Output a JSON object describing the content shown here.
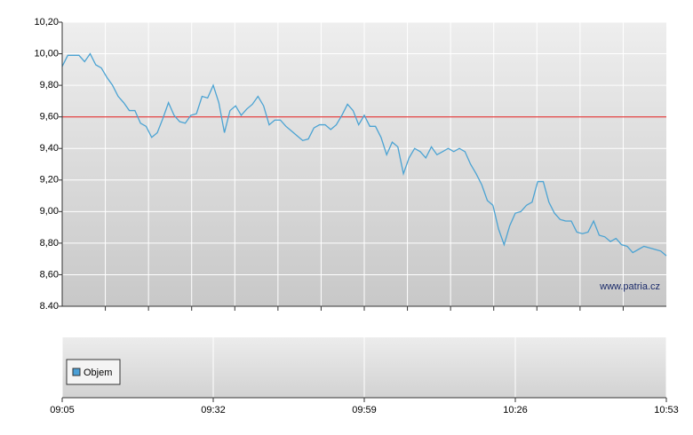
{
  "chart_data": {
    "type": "line",
    "watermark": "www.patria.cz",
    "x": [
      545,
      546,
      547,
      548,
      549,
      550,
      551,
      552,
      553,
      554,
      555,
      556,
      557,
      558,
      559,
      560,
      561,
      562,
      563,
      564,
      565,
      566,
      567,
      568,
      569,
      570,
      571,
      572,
      573,
      574,
      575,
      576,
      577,
      578,
      579,
      580,
      581,
      582,
      583,
      584,
      585,
      586,
      587,
      588,
      589,
      590,
      591,
      592,
      593,
      594,
      595,
      596,
      597,
      598,
      599,
      600,
      601,
      602,
      603,
      604,
      605,
      606,
      607,
      608,
      609,
      610,
      611,
      612,
      613,
      614,
      615,
      616,
      617,
      618,
      619,
      620,
      621,
      622,
      623,
      624,
      625,
      626,
      627,
      628,
      629,
      630,
      631,
      632,
      633,
      634,
      635,
      636,
      637,
      638,
      639,
      640,
      641,
      642,
      643,
      644,
      645,
      646,
      647,
      648,
      649,
      650,
      651,
      652,
      653
    ],
    "series": [
      {
        "color": "#4ba3d3",
        "values": [
          9.92,
          9.99,
          9.99,
          9.99,
          9.95,
          10.0,
          9.93,
          9.91,
          9.85,
          9.8,
          9.73,
          9.69,
          9.64,
          9.64,
          9.56,
          9.54,
          9.47,
          9.5,
          9.59,
          9.69,
          9.61,
          9.57,
          9.56,
          9.61,
          9.62,
          9.73,
          9.72,
          9.8,
          9.69,
          9.5,
          9.64,
          9.67,
          9.61,
          9.65,
          9.68,
          9.73,
          9.67,
          9.55,
          9.58,
          9.58,
          9.54,
          9.51,
          9.48,
          9.45,
          9.46,
          9.53,
          9.55,
          9.55,
          9.52,
          9.55,
          9.61,
          9.68,
          9.64,
          9.55,
          9.61,
          9.54,
          9.54,
          9.47,
          9.36,
          9.44,
          9.41,
          9.24,
          9.34,
          9.4,
          9.38,
          9.34,
          9.41,
          9.36,
          9.38,
          9.4,
          9.38,
          9.4,
          9.38,
          9.3,
          9.24,
          9.17,
          9.07,
          9.04,
          8.89,
          8.79,
          8.91,
          8.99,
          9.0,
          9.04,
          9.06,
          9.19,
          9.19,
          9.06,
          8.99,
          8.95,
          8.94,
          8.94,
          8.87,
          8.86,
          8.87,
          8.94,
          8.85,
          8.84,
          8.81,
          8.83,
          8.79,
          8.78,
          8.74,
          8.76,
          8.78,
          8.77,
          8.76,
          8.75,
          8.72
        ]
      }
    ],
    "reference_line": {
      "value": 9.6,
      "color": "#e03030"
    },
    "volume": {
      "name": "Objem",
      "color": "#4a9fd6"
    },
    "xlim": [
      545,
      653
    ],
    "xticks": [
      {
        "value": 545,
        "label": "09:05"
      },
      {
        "value": 572,
        "label": "09:32"
      },
      {
        "value": 599,
        "label": "09:59"
      },
      {
        "value": 626,
        "label": "10:26"
      },
      {
        "value": 653,
        "label": "10:53"
      }
    ],
    "ylim": [
      8.4,
      10.2
    ],
    "yticks": [
      {
        "value": 8.4,
        "label": "8.40"
      },
      {
        "value": 8.6,
        "label": "8,60"
      },
      {
        "value": 8.8,
        "label": "8,80"
      },
      {
        "value": 9.0,
        "label": "9,00"
      },
      {
        "value": 9.2,
        "label": "9,20"
      },
      {
        "value": 9.4,
        "label": "9,40"
      },
      {
        "value": 9.6,
        "label": "9,60"
      },
      {
        "value": 9.8,
        "label": "9,80"
      },
      {
        "value": 10.0,
        "label": "10,00"
      },
      {
        "value": 10.2,
        "label": "10,20"
      }
    ],
    "grid": true
  }
}
